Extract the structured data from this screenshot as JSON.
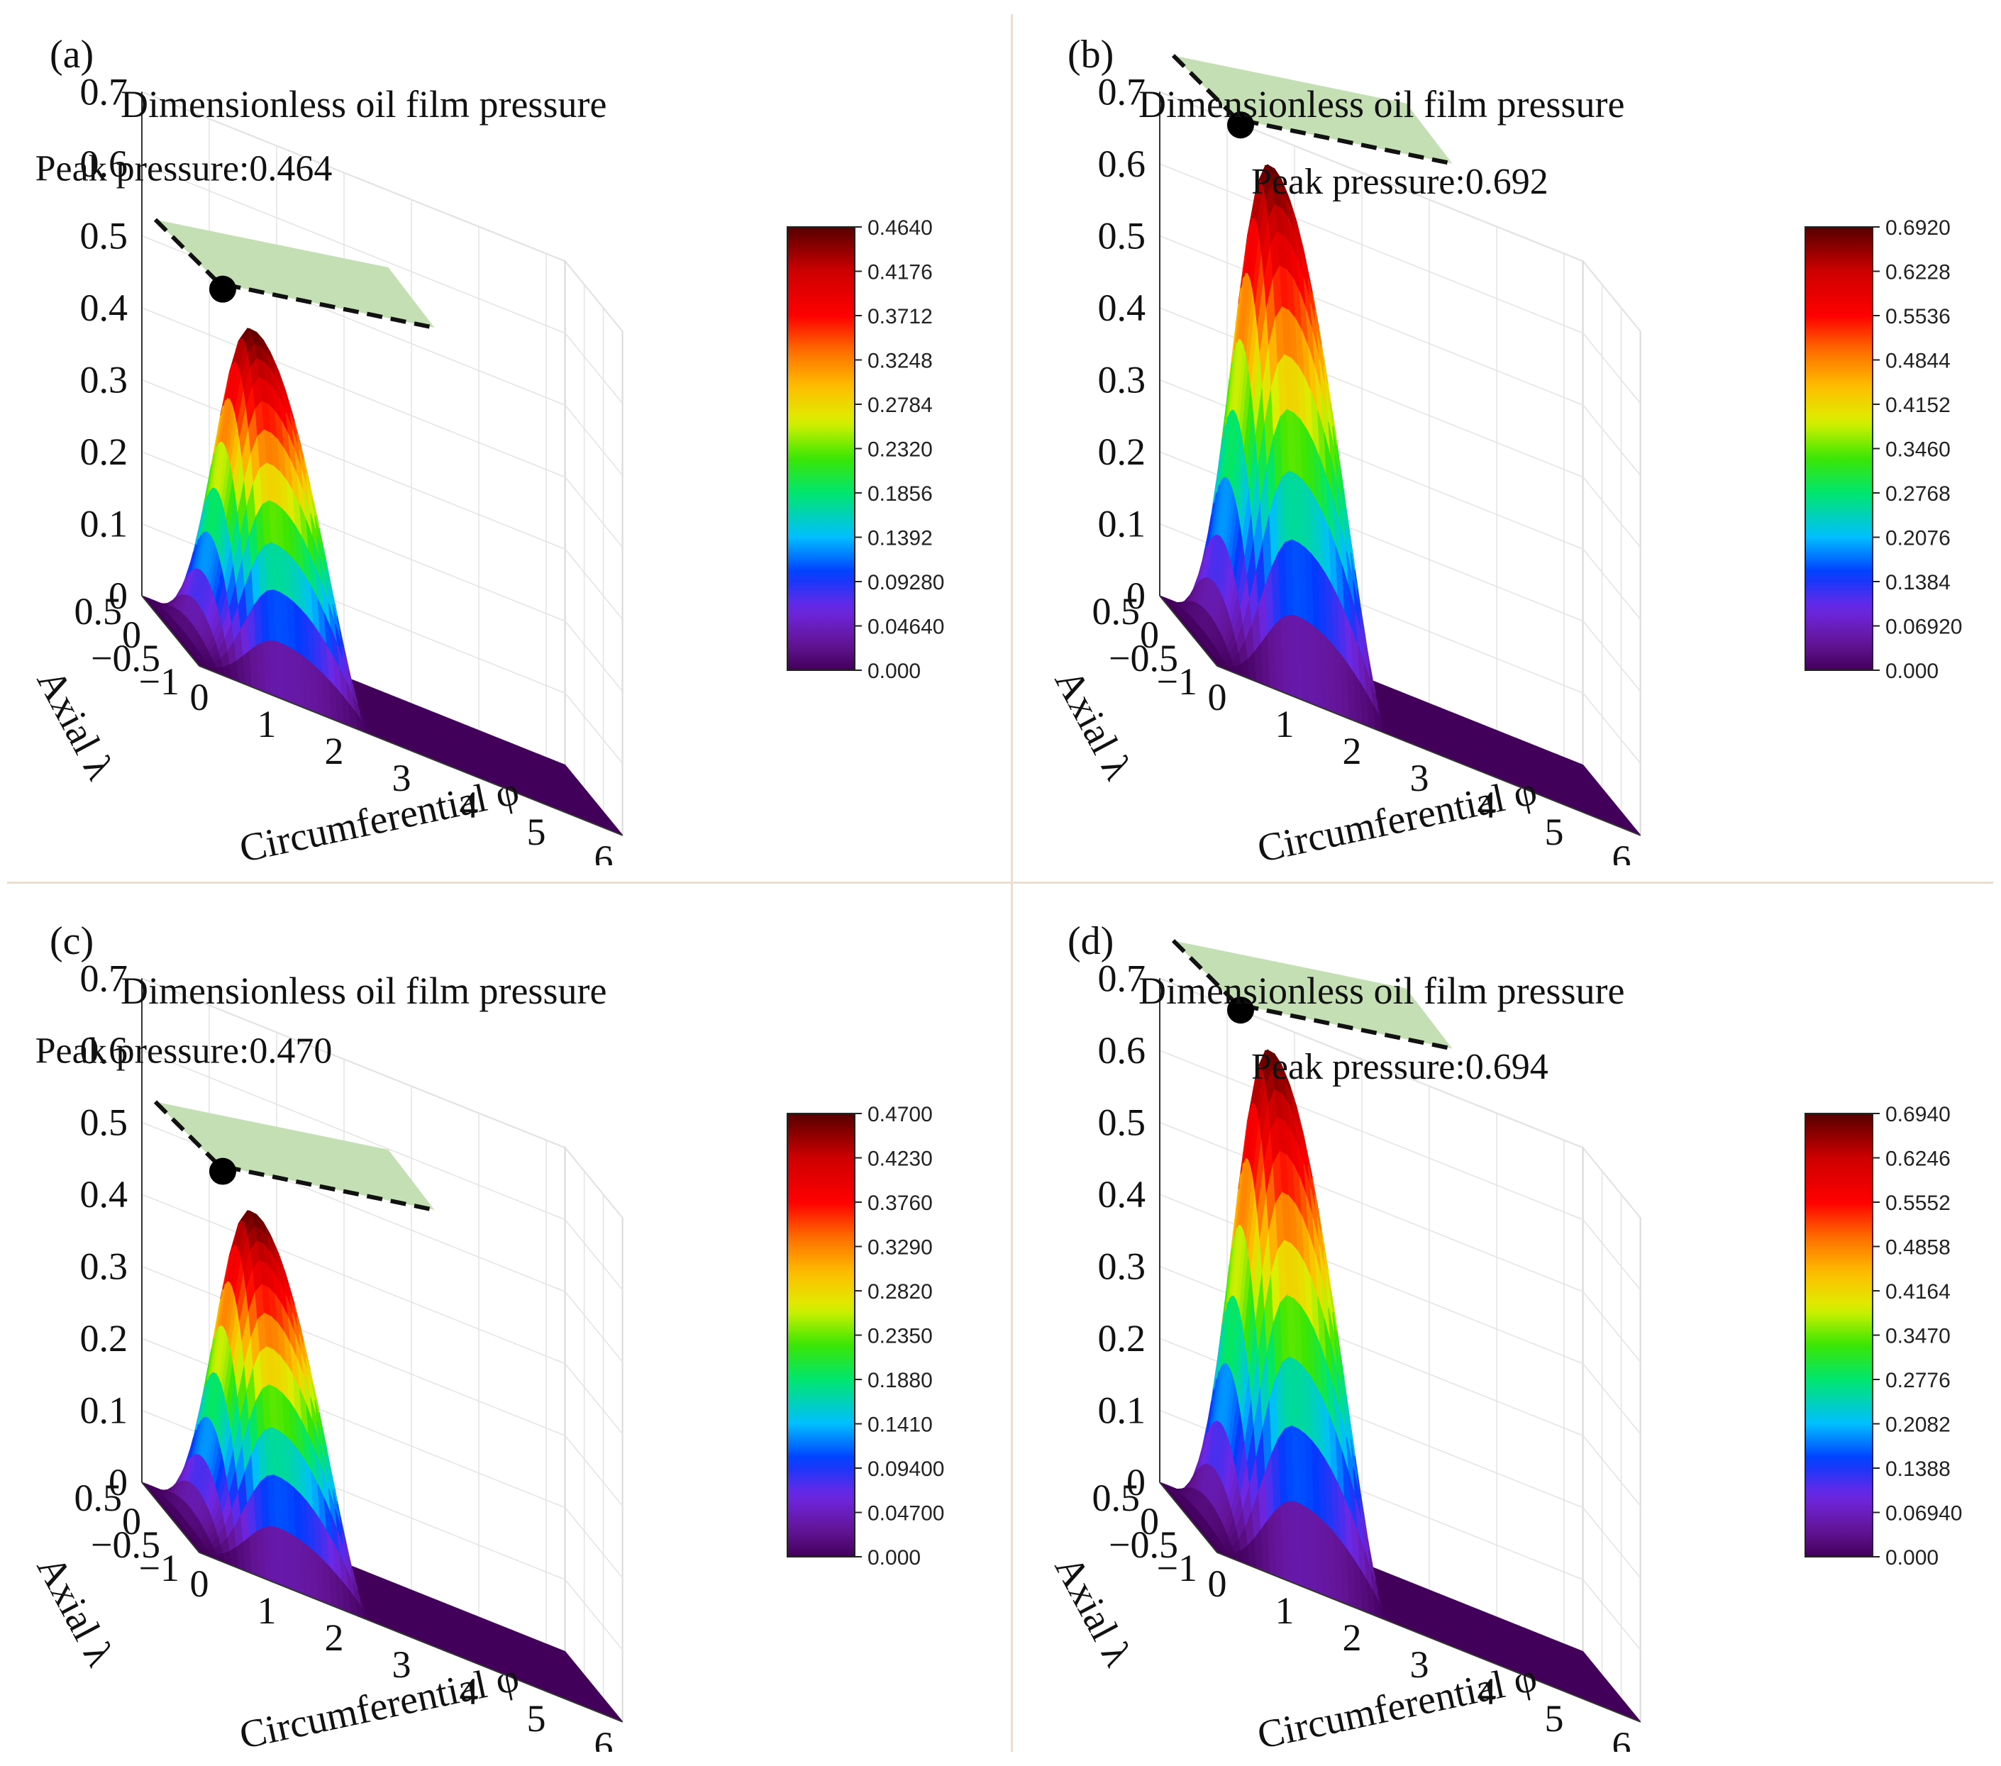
{
  "figure": {
    "panels_order": [
      "a",
      "b",
      "c",
      "d"
    ]
  },
  "chart_data": [
    {
      "type": "surface3d",
      "panel_label": "(a)",
      "title": "Dimensionless oil film pressure",
      "xlabel": "Circumferential φ",
      "ylabel": "Axial λ",
      "x_ticks": [
        "0",
        "1",
        "2",
        "3",
        "4",
        "5",
        "6"
      ],
      "y_ticks": [
        "0.5",
        "0",
        "−0.5",
        "−1"
      ],
      "z_ticks": [
        "0",
        "0.1",
        "0.2",
        "0.3",
        "0.4",
        "0.5",
        "0.6",
        "0.7"
      ],
      "zlim": [
        0,
        0.7
      ],
      "xlim": [
        0,
        6.28
      ],
      "ylim": [
        -1,
        0.5
      ],
      "peak_value": 0.464,
      "peak_phi": 1.2,
      "peak_annotation": "Peak pressure:0.464",
      "annotation_position": "above-peak",
      "colorbar": {
        "min": 0,
        "max": 0.464,
        "ticks": [
          "0.4640",
          "0.4176",
          "0.3712",
          "0.3248",
          "0.2784",
          "0.2320",
          "0.1856",
          "0.1392",
          "0.09280",
          "0.04640",
          "0.000"
        ]
      }
    },
    {
      "type": "surface3d",
      "panel_label": "(b)",
      "title": "Dimensionless oil film pressure",
      "xlabel": "Circumferential φ",
      "ylabel": "Axial λ",
      "x_ticks": [
        "0",
        "1",
        "2",
        "3",
        "4",
        "5",
        "6"
      ],
      "y_ticks": [
        "0.5",
        "0",
        "−0.5",
        "−1"
      ],
      "z_ticks": [
        "0",
        "0.1",
        "0.2",
        "0.3",
        "0.4",
        "0.5",
        "0.6",
        "0.7"
      ],
      "zlim": [
        0,
        0.7
      ],
      "xlim": [
        0,
        6.28
      ],
      "ylim": [
        -1,
        0.5
      ],
      "peak_value": 0.692,
      "peak_phi": 1.2,
      "peak_annotation": "Peak pressure:0.692",
      "annotation_position": "right-of-peak",
      "colorbar": {
        "min": 0,
        "max": 0.692,
        "ticks": [
          "0.6920",
          "0.6228",
          "0.5536",
          "0.4844",
          "0.4152",
          "0.3460",
          "0.2768",
          "0.2076",
          "0.1384",
          "0.06920",
          "0.000"
        ]
      }
    },
    {
      "type": "surface3d",
      "panel_label": "(c)",
      "title": "Dimensionless oil film pressure",
      "xlabel": "Circumferential φ",
      "ylabel": "Axial λ",
      "x_ticks": [
        "0",
        "1",
        "2",
        "3",
        "4",
        "5",
        "6"
      ],
      "y_ticks": [
        "0.5",
        "0",
        "−0.5",
        "−1"
      ],
      "z_ticks": [
        "0",
        "0.1",
        "0.2",
        "0.3",
        "0.4",
        "0.5",
        "0.6",
        "0.7"
      ],
      "zlim": [
        0,
        0.7
      ],
      "xlim": [
        0,
        6.28
      ],
      "ylim": [
        -1,
        0.5
      ],
      "peak_value": 0.47,
      "peak_phi": 1.2,
      "peak_annotation": "Peak pressure:0.470",
      "annotation_position": "above-peak",
      "colorbar": {
        "min": 0,
        "max": 0.47,
        "ticks": [
          "0.4700",
          "0.4230",
          "0.3760",
          "0.3290",
          "0.2820",
          "0.2350",
          "0.1880",
          "0.1410",
          "0.09400",
          "0.04700",
          "0.000"
        ]
      }
    },
    {
      "type": "surface3d",
      "panel_label": "(d)",
      "title": "Dimensionless oil film pressure",
      "xlabel": "Circumferential φ",
      "ylabel": "Axial λ",
      "x_ticks": [
        "0",
        "1",
        "2",
        "3",
        "4",
        "5",
        "6"
      ],
      "y_ticks": [
        "0.5",
        "0",
        "−0.5",
        "−1"
      ],
      "z_ticks": [
        "0",
        "0.1",
        "0.2",
        "0.3",
        "0.4",
        "0.5",
        "0.6",
        "0.7"
      ],
      "zlim": [
        0,
        0.7
      ],
      "xlim": [
        0,
        6.28
      ],
      "ylim": [
        -1,
        0.5
      ],
      "peak_value": 0.694,
      "peak_phi": 1.2,
      "peak_annotation": "Peak pressure:0.694",
      "annotation_position": "right-of-peak",
      "colorbar": {
        "min": 0,
        "max": 0.694,
        "ticks": [
          "0.6940",
          "0.6246",
          "0.5552",
          "0.4858",
          "0.4164",
          "0.3470",
          "0.2776",
          "0.2082",
          "0.1388",
          "0.06940",
          "0.000"
        ]
      }
    }
  ]
}
